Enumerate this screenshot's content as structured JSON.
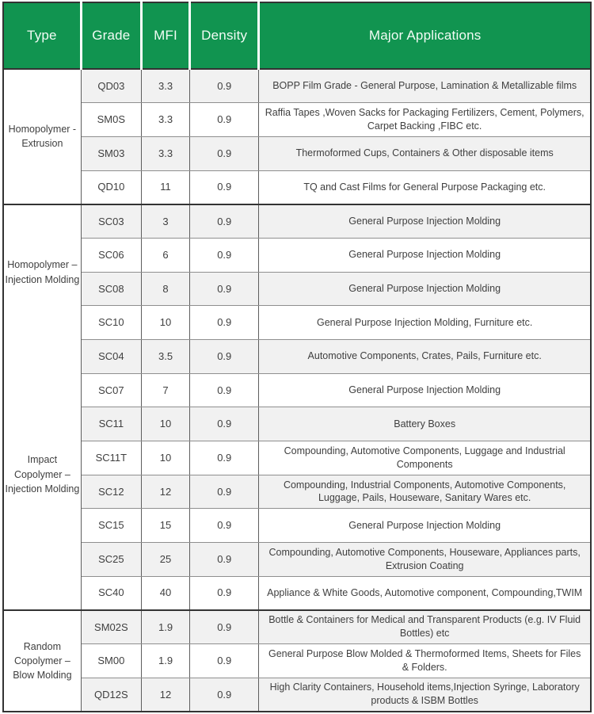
{
  "table_title": "Polypropylene grades table",
  "colors": {
    "header_green": "#119450",
    "header_text": "#f2fcf5",
    "row_shade": "#f1f1f1",
    "body_text": "#3f3f3f",
    "grid_dark": "#333333"
  },
  "header": {
    "columns": [
      "Type",
      "Grade",
      "MFI",
      "Density",
      "Major Applications"
    ]
  },
  "groups": [
    {
      "type_label": "Homopolymer - Extrusion",
      "rows": [
        {
          "grade": "QD03",
          "mfi": "3.3",
          "density": "0.9",
          "applications": "BOPP Film Grade - General Purpose, Lamination & Metallizable films"
        },
        {
          "grade": "SM0S",
          "mfi": "3.3",
          "density": "0.9",
          "applications": "Raffia Tapes ,Woven Sacks for Packaging Fertilizers, Cement, Polymers, Carpet Backing ,FIBC etc."
        },
        {
          "grade": "SM03",
          "mfi": "3.3",
          "density": "0.9",
          "applications": "Thermoformed Cups, Containers & Other disposable items"
        },
        {
          "grade": "QD10",
          "mfi": "11",
          "density": "0.9",
          "applications": "TQ and Cast Films for General Purpose Packaging etc."
        }
      ]
    },
    {
      "type_label": "Homopolymer – Injection Molding",
      "rows": [
        {
          "grade": "SC03",
          "mfi": "3",
          "density": "0.9",
          "applications": "General Purpose Injection Molding"
        },
        {
          "grade": "SC06",
          "mfi": "6",
          "density": "0.9",
          "applications": "General Purpose Injection Molding"
        },
        {
          "grade": "SC08",
          "mfi": "8",
          "density": "0.9",
          "applications": "General Purpose Injection Molding"
        },
        {
          "grade": "SC10",
          "mfi": "10",
          "density": "0.9",
          "applications": "General Purpose Injection Molding, Furniture etc."
        }
      ]
    },
    {
      "type_label": "Impact Copolymer – Injection Molding",
      "rows": [
        {
          "grade": "SC04",
          "mfi": "3.5",
          "density": "0.9",
          "applications": "Automotive Components, Crates, Pails, Furniture etc."
        },
        {
          "grade": "SC07",
          "mfi": "7",
          "density": "0.9",
          "applications": "General Purpose Injection Molding"
        },
        {
          "grade": "SC11",
          "mfi": "10",
          "density": "0.9",
          "applications": "Battery Boxes"
        },
        {
          "grade": "SC11T",
          "mfi": "10",
          "density": "0.9",
          "applications": "Compounding, Automotive Components, Luggage and Industrial Components"
        },
        {
          "grade": "SC12",
          "mfi": "12",
          "density": "0.9",
          "applications": "Compounding, Industrial Components, Automotive Components, Luggage, Pails, Houseware, Sanitary Wares etc."
        },
        {
          "grade": "SC15",
          "mfi": "15",
          "density": "0.9",
          "applications": "General Purpose Injection Molding"
        },
        {
          "grade": "SC25",
          "mfi": "25",
          "density": "0.9",
          "applications": "Compounding, Automotive Components, Houseware, Appliances parts, Extrusion Coating"
        },
        {
          "grade": "SC40",
          "mfi": "40",
          "density": "0.9",
          "applications": "Appliance & White Goods, Automotive component, Compounding,TWIM"
        }
      ]
    },
    {
      "type_label": "Random Copolymer – Blow Molding",
      "rows": [
        {
          "grade": "SM02S",
          "mfi": "1.9",
          "density": "0.9",
          "applications": "Bottle & Containers for Medical and Transparent Products (e.g. IV Fluid Bottles) etc"
        },
        {
          "grade": "SM00",
          "mfi": "1.9",
          "density": "0.9",
          "applications": "General Purpose Blow Molded & Thermoformed Items, Sheets for Files & Folders."
        },
        {
          "grade": "QD12S",
          "mfi": "12",
          "density": "0.9",
          "applications": "High Clarity Containers, Household items,Injection Syringe, Laboratory products & ISBM Bottles"
        }
      ]
    }
  ]
}
